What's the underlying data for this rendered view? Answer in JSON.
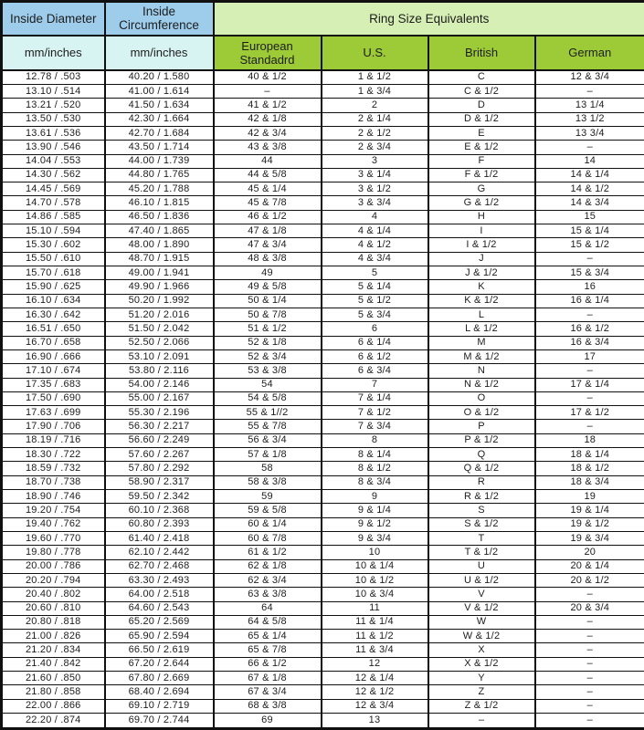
{
  "title": "Ring Size Equivalents",
  "header": {
    "col1_title": "Inside Diameter",
    "col2_title": "Inside Circumference",
    "group_title": "Ring Size Equivalents",
    "col1_sub": "mm/inches",
    "col2_sub": "mm/inches",
    "sub_headers": [
      "European Standadrd",
      "U.S.",
      "British",
      "German"
    ]
  },
  "colors": {
    "blue_header": "#9ecdec",
    "pale_green_header": "#d6efb4",
    "cyan_subheader": "#d7f4f2",
    "green_subheader": "#9dca37",
    "grid_border": "#101010",
    "text": "#1d1d1d",
    "background": "#ffffff"
  },
  "chart_data": {
    "type": "table",
    "title": "Ring Size Equivalents",
    "columns": [
      "Inside Diameter (mm/inches)",
      "Inside Circumference (mm/inches)",
      "European Standadrd",
      "U.S.",
      "British",
      "German"
    ],
    "rows": [
      [
        "12.78 / .503",
        "40.20 / 1.580",
        "40 & 1/2",
        "1 & 1/2",
        "C",
        "12 & 3/4"
      ],
      [
        "13.10 / .514",
        "41.00 / 1.614",
        "–",
        "1 & 3/4",
        "C & 1/2",
        "–"
      ],
      [
        "13.21 / .520",
        "41.50 / 1.634",
        "41 & 1/2",
        "2",
        "D",
        "13 1/4"
      ],
      [
        "13.50 / .530",
        "42.30 / 1.664",
        "42 & 1/8",
        "2 & 1/4",
        "D & 1/2",
        "13 1/2"
      ],
      [
        "13.61 / .536",
        "42.70 / 1.684",
        "42 & 3/4",
        "2 & 1/2",
        "E",
        "13 3/4"
      ],
      [
        "13.90 / .546",
        "43.50 / 1.714",
        "43 & 3/8",
        "2 & 3/4",
        "E & 1/2",
        "–"
      ],
      [
        "14.04 / .553",
        "44.00 / 1.739",
        "44",
        "3",
        "F",
        "14"
      ],
      [
        "14.30 / .562",
        "44.80 / 1.765",
        "44 & 5/8",
        "3 & 1/4",
        "F & 1/2",
        "14 & 1/4"
      ],
      [
        "14.45 / .569",
        "45.20 / 1.788",
        "45 & 1/4",
        "3 & 1/2",
        "G",
        "14 & 1/2"
      ],
      [
        "14.70 / .578",
        "46.10 / 1.815",
        "45 & 7/8",
        "3 & 3/4",
        "G & 1/2",
        "14 & 3/4"
      ],
      [
        "14.86 / .585",
        "46.50 / 1.836",
        "46 & 1/2",
        "4",
        "H",
        "15"
      ],
      [
        "15.10 / .594",
        "47.40 / 1.865",
        "47 & 1/8",
        "4 & 1/4",
        "I",
        "15 & 1/4"
      ],
      [
        "15.30 / .602",
        "48.00 / 1.890",
        "47 & 3/4",
        "4 & 1/2",
        "I & 1/2",
        "15 & 1/2"
      ],
      [
        "15.50 / .610",
        "48.70 / 1.915",
        "48 & 3/8",
        "4 & 3/4",
        "J",
        "–"
      ],
      [
        "15.70 / .618",
        "49.00 / 1.941",
        "49",
        "5",
        "J & 1/2",
        "15 & 3/4"
      ],
      [
        "15.90 / .625",
        "49.90 / 1.966",
        "49 & 5/8",
        "5 & 1/4",
        "K",
        "16"
      ],
      [
        "16.10 / .634",
        "50.20 / 1.992",
        "50 & 1/4",
        "5 & 1/2",
        "K & 1/2",
        "16 & 1/4"
      ],
      [
        "16.30 / .642",
        "51.20 / 2.016",
        "50 & 7/8",
        "5 & 3/4",
        "L",
        "–"
      ],
      [
        "16.51 / .650",
        "51.50 / 2.042",
        "51 & 1/2",
        "6",
        "L & 1/2",
        "16 & 1/2"
      ],
      [
        "16.70 / .658",
        "52.50 / 2.066",
        "52 & 1/8",
        "6 & 1/4",
        "M",
        "16 & 3/4"
      ],
      [
        "16.90 / .666",
        "53.10 / 2.091",
        "52 & 3/4",
        "6 & 1/2",
        "M & 1/2",
        "17"
      ],
      [
        "17.10 / .674",
        "53.80 / 2.116",
        "53 & 3/8",
        "6 & 3/4",
        "N",
        "–"
      ],
      [
        "17.35 / .683",
        "54.00 / 2.146",
        "54",
        "7",
        "N & 1/2",
        "17 & 1/4"
      ],
      [
        "17.50 / .690",
        "55.00 / 2.167",
        "54 & 5/8",
        "7 & 1/4",
        "O",
        "–"
      ],
      [
        "17.63 / .699",
        "55.30 / 2.196",
        "55 & 1//2",
        "7 & 1/2",
        "O & 1/2",
        "17 & 1/2"
      ],
      [
        "17.90 / .706",
        "56.30 / 2.217",
        "55 & 7/8",
        "7 & 3/4",
        "P",
        "–"
      ],
      [
        "18.19 / .716",
        "56.60 / 2.249",
        "56 & 3/4",
        "8",
        "P & 1/2",
        "18"
      ],
      [
        "18.30 / .722",
        "57.60 / 2.267",
        "57 & 1/8",
        "8 & 1/4",
        "Q",
        "18 & 1/4"
      ],
      [
        "18.59 / .732",
        "57.80 / 2.292",
        "58",
        "8 & 1/2",
        "Q & 1/2",
        "18 & 1/2"
      ],
      [
        "18.70 / .738",
        "58.90 / 2.317",
        "58 & 3/8",
        "8 & 3/4",
        "R",
        "18 & 3/4"
      ],
      [
        "18.90 / .746",
        "59.50 / 2.342",
        "59",
        "9",
        "R & 1/2",
        "19"
      ],
      [
        "19.20 / .754",
        "60.10 / 2.368",
        "59 & 5/8",
        "9 & 1/4",
        "S",
        "19 & 1/4"
      ],
      [
        "19.40 / .762",
        "60.80 / 2.393",
        "60 & 1/4",
        "9 & 1/2",
        "S & 1/2",
        "19 & 1/2"
      ],
      [
        "19.60 / .770",
        "61.40 / 2.418",
        "60 & 7/8",
        "9 & 3/4",
        "T",
        "19 & 3/4"
      ],
      [
        "19.80 / .778",
        "62.10 / 2.442",
        "61 & 1/2",
        "10",
        "T & 1/2",
        "20"
      ],
      [
        "20.00 / .786",
        "62.70 / 2.468",
        "62 & 1/8",
        "10 & 1/4",
        "U",
        "20 & 1/4"
      ],
      [
        "20.20 / .794",
        "63.30 / 2.493",
        "62 & 3/4",
        "10 & 1/2",
        "U & 1/2",
        "20 & 1/2"
      ],
      [
        "20.40 / .802",
        "64.00 / 2.518",
        "63 & 3/8",
        "10 & 3/4",
        "V",
        "–"
      ],
      [
        "20.60 / .810",
        "64.60 / 2.543",
        "64",
        "11",
        "V & 1/2",
        "20 & 3/4"
      ],
      [
        "20.80 / .818",
        "65.20 / 2.569",
        "64 & 5/8",
        "11 & 1/4",
        "W",
        "–"
      ],
      [
        "21.00 / .826",
        "65.90 / 2.594",
        "65 & 1/4",
        "11 & 1/2",
        "W & 1/2",
        "–"
      ],
      [
        "21.20 / .834",
        "66.50 / 2.619",
        "65 & 7/8",
        "11 & 3/4",
        "X",
        "–"
      ],
      [
        "21.40 / .842",
        "67.20 / 2.644",
        "66 & 1/2",
        "12",
        "X & 1/2",
        "–"
      ],
      [
        "21.60 / .850",
        "67.80 / 2.669",
        "67 & 1/8",
        "12 & 1/4",
        "Y",
        "–"
      ],
      [
        "21.80 / .858",
        "68.40 / 2.694",
        "67 & 3/4",
        "12 & 1/2",
        "Z",
        "–"
      ],
      [
        "22.00 / .866",
        "69.10 / 2.719",
        "68 & 3/8",
        "12 & 3/4",
        "Z & 1/2",
        "–"
      ],
      [
        "22.20 / .874",
        "69.70 / 2.744",
        "69",
        "13",
        "–",
        "–"
      ]
    ]
  }
}
